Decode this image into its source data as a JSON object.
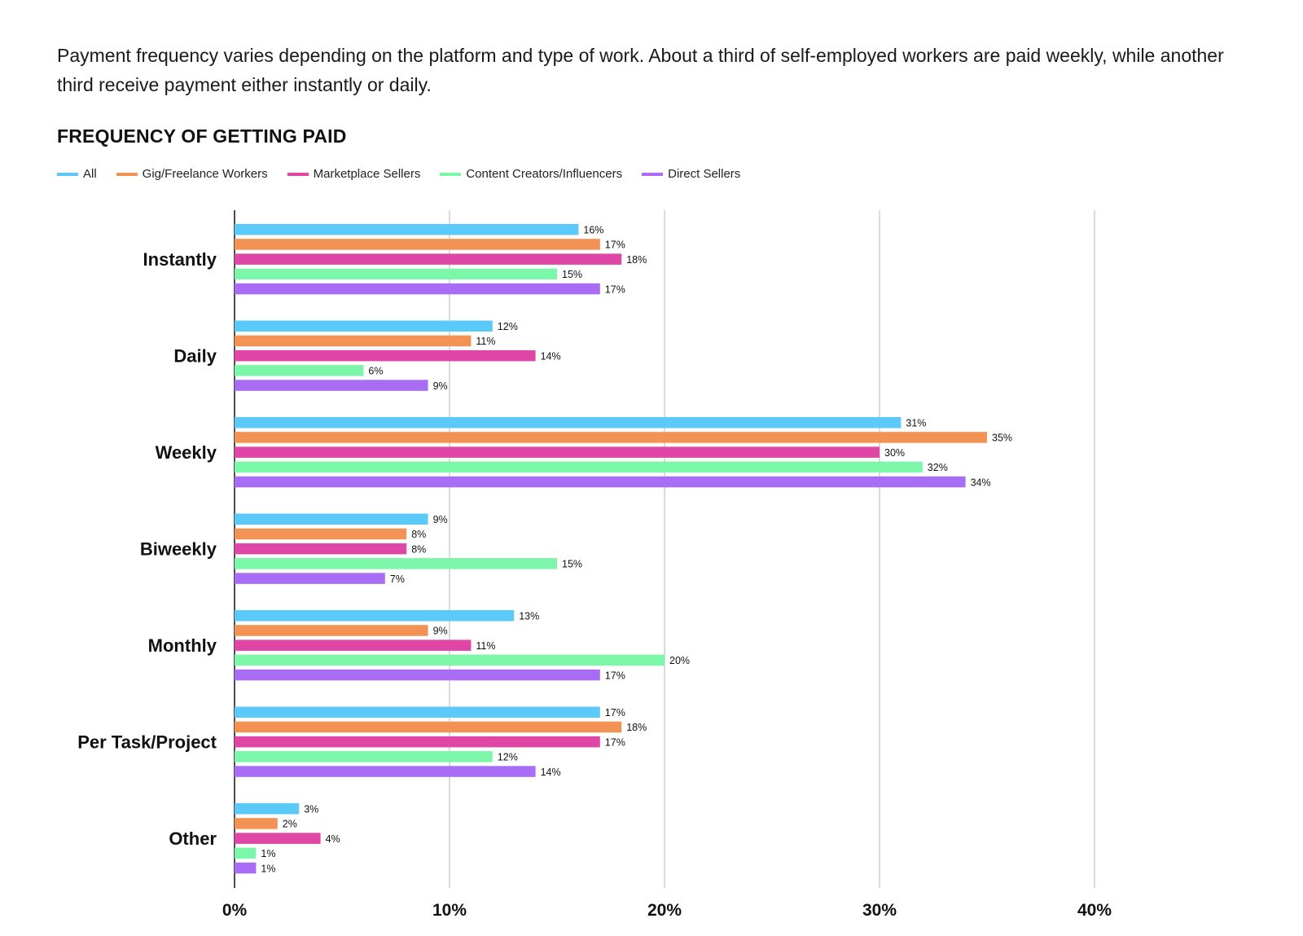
{
  "intro": "Payment frequency varies depending on the platform and type of work. About a third of self-employed workers are paid weekly, while another third receive payment either instantly or daily.",
  "chart_data": {
    "type": "bar",
    "orientation": "horizontal",
    "title": "FREQUENCY OF GETTING PAID",
    "categories": [
      "Instantly",
      "Daily",
      "Weekly",
      "Biweekly",
      "Monthly",
      "Per Task/Project",
      "Other"
    ],
    "series": [
      {
        "name": "All",
        "color": "#5ccaf9",
        "values": [
          16,
          12,
          31,
          9,
          13,
          17,
          3
        ]
      },
      {
        "name": "Gig/Freelance Workers",
        "color": "#f29355",
        "values": [
          17,
          11,
          35,
          8,
          9,
          18,
          2
        ]
      },
      {
        "name": "Marketplace Sellers",
        "color": "#df46a6",
        "values": [
          18,
          14,
          30,
          8,
          11,
          17,
          4
        ]
      },
      {
        "name": "Content Creators/Influencers",
        "color": "#7cf6a9",
        "values": [
          15,
          6,
          32,
          15,
          20,
          12,
          1
        ]
      },
      {
        "name": "Direct Sellers",
        "color": "#a96df5",
        "values": [
          17,
          9,
          34,
          7,
          17,
          14,
          1
        ]
      }
    ],
    "value_suffix": "%",
    "x_ticks": [
      "0%",
      "10%",
      "20%",
      "30%",
      "40%"
    ],
    "xlim": [
      0,
      40
    ],
    "legend_position": "top-left",
    "grid": "vertical"
  }
}
